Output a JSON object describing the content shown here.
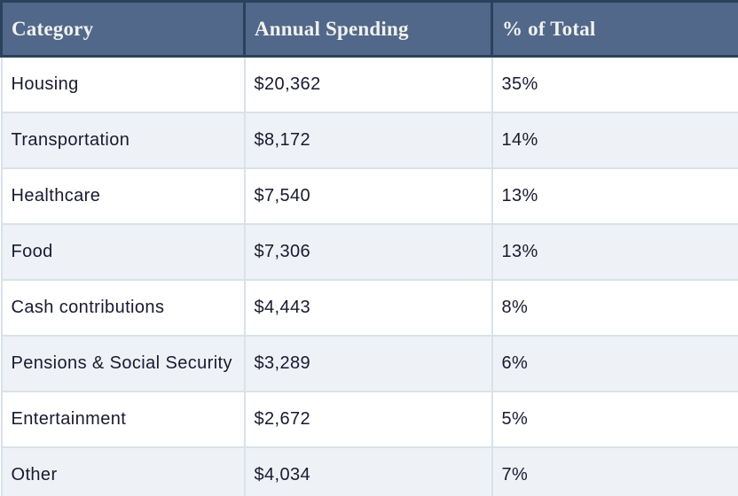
{
  "table": {
    "headers": [
      "Category",
      "Annual Spending",
      "% of Total"
    ],
    "rows": [
      {
        "category": "Housing",
        "spending": "$20,362",
        "percent": "35%"
      },
      {
        "category": "Transportation",
        "spending": "$8,172",
        "percent": "14%"
      },
      {
        "category": "Healthcare",
        "spending": "$7,540",
        "percent": "13%"
      },
      {
        "category": "Food",
        "spending": "$7,306",
        "percent": "13%"
      },
      {
        "category": "Cash contributions",
        "spending": "$4,443",
        "percent": "8%"
      },
      {
        "category": "Pensions & Social Security",
        "spending": "$3,289",
        "percent": "6%"
      },
      {
        "category": "Entertainment",
        "spending": "$2,672",
        "percent": "5%"
      },
      {
        "category": "Other",
        "spending": "$4,034",
        "percent": "7%"
      }
    ]
  },
  "colors": {
    "header_background": "#51688b",
    "header_border": "#2b425c",
    "header_text": "#f1f2ec",
    "row_alt_background": "#eef2f6",
    "row_border": "#d9e2e9",
    "body_text": "#191930"
  },
  "chart_data": {
    "type": "table",
    "title": "",
    "columns": [
      "Category",
      "Annual Spending",
      "% of Total"
    ],
    "categories": [
      "Housing",
      "Transportation",
      "Healthcare",
      "Food",
      "Cash contributions",
      "Pensions & Social Security",
      "Entertainment",
      "Other"
    ],
    "series": [
      {
        "name": "Annual Spending ($)",
        "values": [
          20362,
          8172,
          7540,
          7306,
          4443,
          3289,
          2672,
          4034
        ]
      },
      {
        "name": "% of Total",
        "values": [
          35,
          14,
          13,
          13,
          8,
          6,
          5,
          7
        ]
      }
    ]
  }
}
